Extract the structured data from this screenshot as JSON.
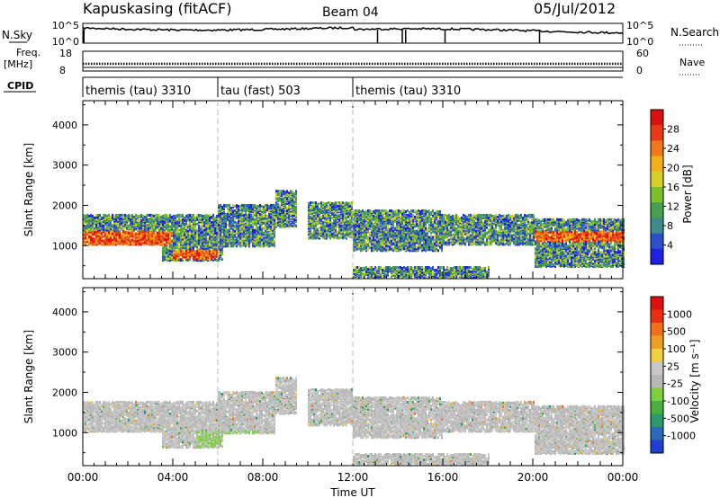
{
  "header": {
    "station_title": "Kapuskasing (fitACF)",
    "beam": "Beam 04",
    "date": "05/Jul/2012"
  },
  "top_panels": {
    "nsky_label": "N.Sky",
    "nsky_ticks": [
      "10^5",
      "10^0"
    ],
    "nsearch_label": "N.Search",
    "nsearch_ticks": [
      "10^5",
      "10^0"
    ],
    "freq_label": "Freq.",
    "freq_unit": "[MHz]",
    "freq_ticks": [
      "18",
      "8"
    ],
    "nave_label": "Nave",
    "nave_ticks": [
      "60",
      "0"
    ],
    "cpid_label": "CPID",
    "cpid_segments": [
      {
        "label": "themis (tau) 3310",
        "start_hour": 0
      },
      {
        "label": "tau (fast) 503",
        "start_hour": 6
      },
      {
        "label": "themis (tau) 3310",
        "start_hour": 12
      }
    ]
  },
  "chart_data": [
    {
      "type": "heatmap",
      "name": "power",
      "ylabel": "Slant Range [km]",
      "ylim": [
        180,
        4600
      ],
      "yticks": [
        "1000",
        "2000",
        "3000",
        "4000"
      ],
      "xlim_hours": [
        0,
        24
      ],
      "colorbar_label": "Power [dB]",
      "colorbar_ticks": [
        "28",
        "24",
        "20",
        "16",
        "12",
        "8",
        "4"
      ],
      "colorbar_colors": [
        "#1f1fe6",
        "#2b50c8",
        "#3f8a8a",
        "#46a050",
        "#7cc02c",
        "#d8d02a",
        "#f4b018",
        "#f07818",
        "#e83a14",
        "#d81010"
      ]
    },
    {
      "type": "heatmap",
      "name": "velocity",
      "ylabel": "Slant Range [km]",
      "ylim": [
        180,
        4600
      ],
      "yticks": [
        "1000",
        "2000",
        "3000",
        "4000"
      ],
      "xlabel": "Time UT",
      "xticks": [
        "00:00",
        "04:00",
        "08:00",
        "12:00",
        "16:00",
        "20:00",
        "00:00"
      ],
      "colorbar_label": "Velocity [m s⁻¹]",
      "colorbar_ticks": [
        "1000",
        "500",
        "100",
        "25",
        "-25",
        "-100",
        "-500",
        "-1000"
      ],
      "colorbar_colors": [
        "#1f3fd0",
        "#2a6ab8",
        "#2a9a6a",
        "#48b040",
        "#7cd040",
        "#b8b8b8",
        "#c8c8c8",
        "#f0d040",
        "#f0a020",
        "#f07020",
        "#e83010",
        "#e01010"
      ]
    }
  ]
}
